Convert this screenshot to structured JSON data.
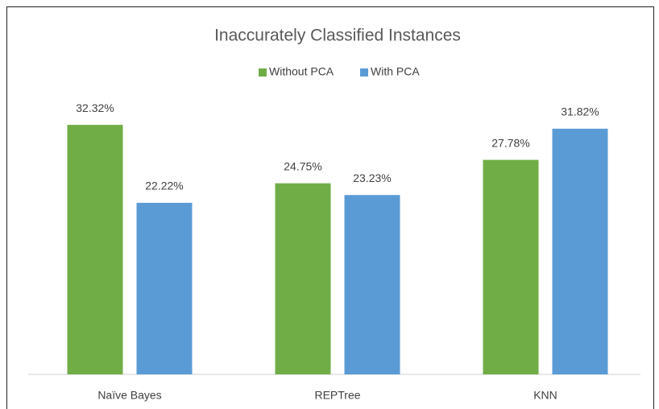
{
  "chart_data": {
    "type": "bar",
    "title": "Inaccurately Classified Instances",
    "categories": [
      "Naïve Bayes",
      "REPTree",
      "KNN"
    ],
    "series": [
      {
        "name": "Without PCA",
        "color": "#70ad47",
        "values": [
          32.32,
          24.75,
          27.78
        ],
        "value_labels": [
          "32.32%",
          "24.75%",
          "27.78%"
        ]
      },
      {
        "name": "With PCA",
        "color": "#5b9bd5",
        "values": [
          22.22,
          23.23,
          31.82
        ],
        "value_labels": [
          "22.22%",
          "23.23%",
          "31.82%"
        ]
      }
    ],
    "ylim": [
      0,
      35
    ],
    "legend": "top"
  }
}
